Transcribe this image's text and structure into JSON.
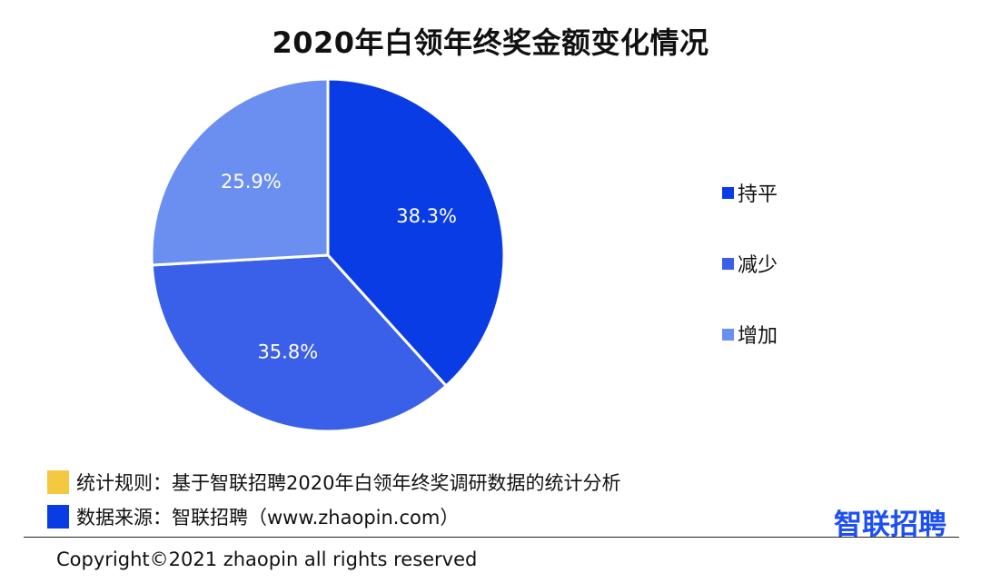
{
  "chart_data": {
    "type": "pie",
    "title": "2020年白领年终奖金额变化情况",
    "slices": [
      {
        "label": "持平",
        "value": 38.3,
        "value_label": "38.3%",
        "color": "#0a3ce6"
      },
      {
        "label": "减少",
        "value": 35.8,
        "value_label": "35.8%",
        "color": "#3a5fe8"
      },
      {
        "label": "增加",
        "value": 25.9,
        "value_label": "25.9%",
        "color": "#6b8ff0"
      }
    ],
    "legend_position": "right",
    "start_angle": "top (12 o'clock), clockwise"
  },
  "legend": [
    {
      "label": "持平",
      "color": "#0a3ce6"
    },
    {
      "label": "减少",
      "color": "#3a5fe8"
    },
    {
      "label": "增加",
      "color": "#6b8ff0"
    }
  ],
  "footnotes": {
    "rule": {
      "text": "统计规则：基于智联招聘2020年白领年终奖调研数据的统计分析",
      "color": "#f5c842"
    },
    "source": {
      "text": "数据来源：智联招聘（www.zhaopin.com）",
      "color": "#0a3ce6"
    }
  },
  "brand": {
    "text": "智联招聘",
    "color": "#1b4ef5"
  },
  "copyright": "Copyright©2021 zhaopin all rights reserved"
}
